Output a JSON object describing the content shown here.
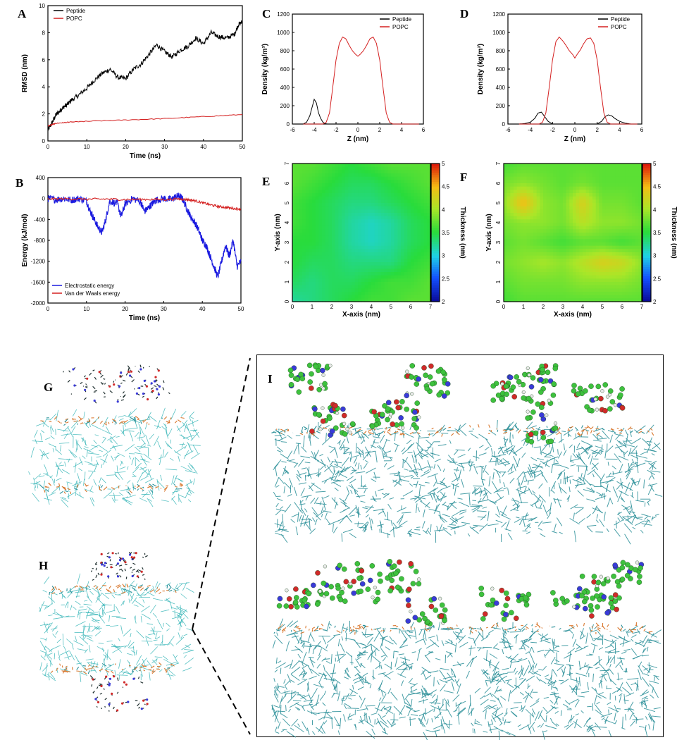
{
  "panels": {
    "A": "A",
    "B": "B",
    "C": "C",
    "D": "D",
    "E": "E",
    "F": "F",
    "G": "G",
    "H": "H",
    "I": "I"
  },
  "colors": {
    "black": "#000000",
    "red": "#d42020",
    "blue": "#1a1adf",
    "lipid_tail": "#38b6b8",
    "lipid_tail_dark": "#2a8f98",
    "lipid_head": "#d9782f",
    "peptide_c": "#3ec13e",
    "peptide_o": "#d02a2a",
    "peptide_n": "#3a3ad8",
    "peptide_h": "#e8e8e8"
  },
  "chart_data": [
    {
      "id": "A",
      "type": "line",
      "xlabel": "Time (ns)",
      "ylabel": "RMSD (nm)",
      "xlim": [
        0,
        50
      ],
      "ylim": [
        0,
        10
      ],
      "xticks": [
        0,
        10,
        20,
        30,
        40,
        50
      ],
      "yticks": [
        0,
        2,
        4,
        6,
        8,
        10
      ],
      "legend_position": "top-left",
      "series": [
        {
          "name": "Peptide",
          "color": "#000000",
          "x": [
            0,
            1,
            2,
            3,
            4,
            5,
            6,
            8,
            10,
            12,
            14,
            16,
            18,
            20,
            22,
            24,
            26,
            28,
            30,
            32,
            34,
            36,
            38,
            40,
            42,
            44,
            46,
            48,
            49,
            50
          ],
          "y": [
            0.8,
            1.3,
            1.9,
            2.2,
            2.5,
            2.7,
            3.0,
            3.4,
            3.9,
            4.5,
            5.0,
            5.3,
            4.7,
            4.6,
            5.3,
            5.7,
            6.4,
            7.1,
            6.6,
            6.2,
            6.7,
            7.0,
            7.6,
            7.2,
            8.0,
            7.7,
            7.6,
            7.9,
            8.6,
            8.8
          ]
        },
        {
          "name": "POPC",
          "color": "#d42020",
          "x": [
            0,
            1,
            2,
            4,
            6,
            10,
            20,
            30,
            40,
            50
          ],
          "y": [
            1.1,
            1.2,
            1.3,
            1.35,
            1.4,
            1.45,
            1.55,
            1.65,
            1.8,
            1.95
          ]
        }
      ]
    },
    {
      "id": "B",
      "type": "line",
      "xlabel": "Time (ns)",
      "ylabel": "Energy (kJ/mol)",
      "xlim": [
        0,
        50
      ],
      "ylim": [
        -2000,
        400
      ],
      "xticks": [
        0,
        10,
        20,
        30,
        40,
        50
      ],
      "yticks": [
        400,
        0,
        -400,
        -800,
        -1200,
        -1600,
        -2000
      ],
      "legend_position": "bottom-left",
      "series": [
        {
          "name": "Electrostatic energy",
          "color": "#1a1adf",
          "x": [
            0,
            2,
            4,
            6,
            8,
            10,
            11,
            12,
            13,
            14,
            15,
            16,
            18,
            19,
            20,
            22,
            24,
            25,
            26,
            27,
            28,
            30,
            32,
            33,
            34,
            35,
            36,
            37,
            38,
            39,
            40,
            41,
            42,
            43,
            44,
            45,
            46,
            47,
            48,
            49,
            50
          ],
          "y": [
            0,
            -20,
            0,
            -30,
            0,
            -50,
            -250,
            -400,
            -550,
            -650,
            -400,
            -50,
            -100,
            -350,
            -100,
            0,
            -60,
            -250,
            -180,
            -100,
            -30,
            0,
            -20,
            30,
            50,
            -20,
            -200,
            -350,
            -450,
            -600,
            -800,
            -900,
            -1100,
            -1300,
            -1500,
            -1200,
            -900,
            -1100,
            -800,
            -1300,
            -1200
          ]
        },
        {
          "name": "Van der Waals energy",
          "color": "#d42020",
          "x": [
            0,
            5,
            10,
            15,
            20,
            25,
            30,
            34,
            36,
            38,
            40,
            42,
            44,
            46,
            48,
            50
          ],
          "y": [
            -10,
            -5,
            -15,
            -10,
            -20,
            -15,
            -20,
            -10,
            -20,
            -40,
            -80,
            -120,
            -150,
            -170,
            -190,
            -200
          ]
        }
      ]
    },
    {
      "id": "C",
      "type": "line",
      "xlabel": "Z (nm)",
      "ylabel": "Density (kg/m³)",
      "xlim": [
        -6,
        6
      ],
      "ylim": [
        0,
        1200
      ],
      "xticks": [
        -6,
        -4,
        -2,
        0,
        2,
        4,
        6
      ],
      "yticks": [
        0,
        200,
        400,
        600,
        800,
        1000,
        1200
      ],
      "legend_position": "top-right",
      "series": [
        {
          "name": "Peptide",
          "color": "#000000",
          "x": [
            -5,
            -4.7,
            -4.4,
            -4.2,
            -4.0,
            -3.8,
            -3.6,
            -3.4,
            -3.2,
            -3.0,
            -2.8,
            -2.5,
            -1,
            5.6
          ],
          "y": [
            0,
            20,
            90,
            180,
            270,
            230,
            120,
            60,
            20,
            5,
            0,
            0,
            0,
            0
          ]
        },
        {
          "name": "POPC",
          "color": "#d42020",
          "x": [
            -5,
            -3.2,
            -2.9,
            -2.6,
            -2.3,
            -2.0,
            -1.7,
            -1.4,
            -1.1,
            -0.8,
            -0.5,
            -0.2,
            0,
            0.2,
            0.5,
            0.8,
            1.1,
            1.4,
            1.7,
            2.0,
            2.3,
            2.6,
            2.9,
            3.2,
            5.6
          ],
          "y": [
            0,
            0,
            20,
            120,
            400,
            700,
            880,
            950,
            930,
            860,
            800,
            760,
            740,
            760,
            800,
            860,
            930,
            950,
            880,
            700,
            400,
            120,
            20,
            0,
            0
          ]
        }
      ]
    },
    {
      "id": "D",
      "type": "line",
      "xlabel": "Z (nm)",
      "ylabel": "Density (kg/m³)",
      "xlim": [
        -6,
        6
      ],
      "ylim": [
        0,
        1200
      ],
      "xticks": [
        -6,
        -4,
        -2,
        0,
        2,
        4,
        6
      ],
      "yticks": [
        0,
        200,
        400,
        600,
        800,
        1000,
        1200
      ],
      "legend_position": "top-right",
      "series": [
        {
          "name": "Peptide",
          "color": "#000000",
          "x": [
            -5,
            -4.5,
            -4.0,
            -3.6,
            -3.3,
            -3.0,
            -2.7,
            -2.4,
            -2,
            0,
            2,
            2.4,
            2.7,
            3.0,
            3.3,
            3.6,
            4.0,
            4.5,
            5
          ],
          "y": [
            0,
            5,
            20,
            60,
            120,
            130,
            80,
            30,
            0,
            0,
            0,
            30,
            80,
            100,
            90,
            60,
            30,
            10,
            0
          ]
        },
        {
          "name": "POPC",
          "color": "#d42020",
          "x": [
            -5,
            -3.2,
            -2.9,
            -2.6,
            -2.3,
            -2.0,
            -1.7,
            -1.4,
            -1.1,
            -0.8,
            -0.5,
            -0.2,
            0,
            0.2,
            0.5,
            0.8,
            1.1,
            1.4,
            1.7,
            2.0,
            2.3,
            2.6,
            2.9,
            3.2,
            5.6
          ],
          "y": [
            0,
            0,
            20,
            120,
            400,
            700,
            900,
            950,
            910,
            860,
            800,
            760,
            720,
            760,
            810,
            880,
            930,
            940,
            880,
            700,
            400,
            120,
            20,
            0,
            0
          ]
        }
      ]
    },
    {
      "id": "E",
      "type": "heatmap",
      "xlabel": "X-axis (nm)",
      "ylabel": "Y-axis (nm)",
      "colorbar_label": "Thickness (nm)",
      "xlim": [
        0,
        7
      ],
      "ylim": [
        0,
        7
      ],
      "xticks": [
        0,
        1,
        2,
        3,
        4,
        5,
        6,
        7
      ],
      "yticks": [
        0,
        1,
        2,
        3,
        4,
        5,
        6,
        7
      ],
      "colorbar_ticks": [
        2,
        2.5,
        3,
        3.5,
        4,
        4.5,
        5
      ],
      "clim": [
        2,
        5
      ],
      "grid_rows_top_to_bottom": [
        [
          3.7,
          3.7,
          3.6,
          3.5,
          3.6,
          3.7,
          3.7,
          3.7
        ],
        [
          3.7,
          3.6,
          3.5,
          3.4,
          3.4,
          3.5,
          3.6,
          3.7
        ],
        [
          3.6,
          3.5,
          3.4,
          3.3,
          3.3,
          3.4,
          3.5,
          3.6
        ],
        [
          3.6,
          3.5,
          3.4,
          3.2,
          3.1,
          3.2,
          3.4,
          3.5
        ],
        [
          3.5,
          3.5,
          3.4,
          3.2,
          3.1,
          3.2,
          3.4,
          3.5
        ],
        [
          3.5,
          3.4,
          3.4,
          3.3,
          3.3,
          3.3,
          3.5,
          3.6
        ],
        [
          3.4,
          3.3,
          3.4,
          3.4,
          3.5,
          3.6,
          3.6,
          3.7
        ],
        [
          3.2,
          3.3,
          3.4,
          3.5,
          3.6,
          3.6,
          3.7,
          3.7
        ]
      ]
    },
    {
      "id": "F",
      "type": "heatmap",
      "xlabel": "X-axis (nm)",
      "ylabel": "Y-axis (nm)",
      "colorbar_label": "Thickness (nm)",
      "xlim": [
        0,
        7
      ],
      "ylim": [
        0,
        7
      ],
      "xticks": [
        0,
        1,
        2,
        3,
        4,
        5,
        6,
        7
      ],
      "yticks": [
        0,
        1,
        2,
        3,
        4,
        5,
        6,
        7
      ],
      "colorbar_ticks": [
        2,
        2.5,
        3,
        3.5,
        4,
        4.5,
        5
      ],
      "clim": [
        2,
        5
      ],
      "grid_rows_top_to_bottom": [
        [
          3.6,
          3.7,
          3.7,
          3.7,
          3.7,
          3.7,
          3.7,
          3.7
        ],
        [
          3.8,
          3.9,
          3.8,
          3.7,
          3.8,
          3.7,
          3.7,
          3.7
        ],
        [
          3.9,
          4.5,
          3.9,
          3.8,
          4.3,
          3.8,
          3.8,
          3.7
        ],
        [
          3.8,
          3.9,
          3.9,
          3.8,
          4.1,
          3.9,
          3.9,
          3.8
        ],
        [
          3.7,
          3.8,
          3.7,
          3.6,
          3.7,
          3.7,
          3.6,
          3.7
        ],
        [
          3.8,
          3.9,
          4.0,
          3.9,
          4.1,
          4.3,
          4.2,
          3.9
        ],
        [
          3.7,
          3.8,
          3.8,
          3.8,
          3.9,
          3.9,
          3.9,
          3.8
        ],
        [
          3.6,
          3.7,
          3.7,
          3.7,
          3.7,
          3.7,
          3.7,
          3.7
        ]
      ]
    }
  ]
}
